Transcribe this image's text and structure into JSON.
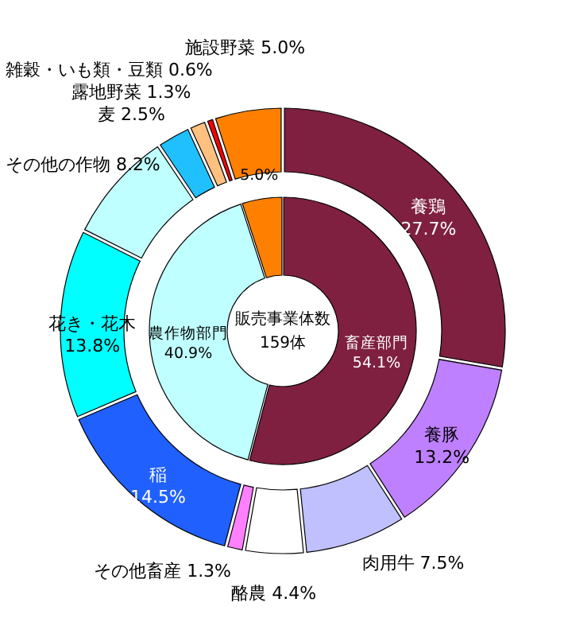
{
  "chart_data": [
    {
      "type": "donut",
      "annotations": [
        "販売事業体数",
        "159体"
      ],
      "categories": [
        "畜産部門",
        "農作物部門",
        null
      ],
      "values": [
        54.1,
        40.9,
        5.0
      ],
      "value_labels": [
        "54.1%",
        "40.9%",
        "5.0%"
      ],
      "colors": [
        "#7f2040",
        "#c0ffff",
        "#ff8000"
      ]
    },
    {
      "type": "donut",
      "categories": [
        "養鶏",
        "養豚",
        "肉用牛",
        "酪農",
        "その他畜産",
        "稲",
        "花き・花木",
        "その他の作物",
        "麦",
        "露地野菜",
        "雑穀・いも類・豆類",
        "施設野菜"
      ],
      "values": [
        27.7,
        13.2,
        7.5,
        4.4,
        1.3,
        14.5,
        13.8,
        8.2,
        2.5,
        1.3,
        0.6,
        5.0
      ],
      "value_labels": [
        "27.7%",
        "13.2%",
        "7.5%",
        "4.4%",
        "1.3%",
        "14.5%",
        "13.8%",
        "8.2%",
        "2.5%",
        "1.3%",
        "0.6%",
        "5.0%"
      ],
      "colors": [
        "#7f2040",
        "#bf80ff",
        "#c0c0ff",
        "#ffffff",
        "#ff80ff",
        "#2060ff",
        "#00ffff",
        "#c0ffff",
        "#20c0ff",
        "#ffc080",
        "#ff0000",
        "#ff8000"
      ]
    }
  ]
}
